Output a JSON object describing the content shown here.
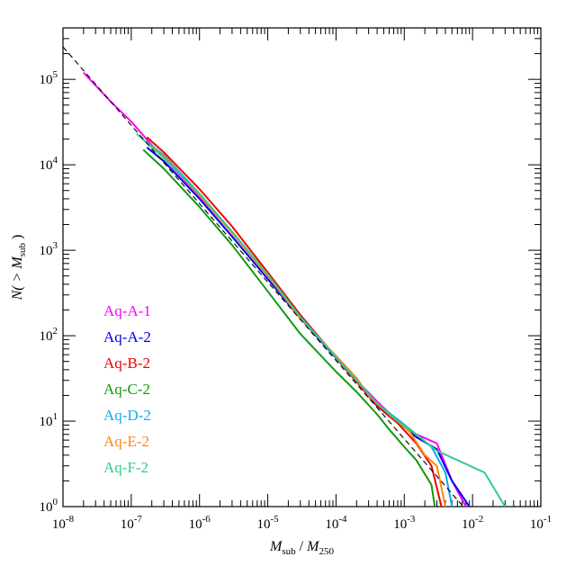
{
  "chart_data": {
    "type": "line",
    "xscale": "log",
    "yscale": "log",
    "xlim": [
      1e-08,
      0.1
    ],
    "ylim": [
      1,
      400000
    ],
    "xlabel": {
      "main": "M",
      "sub": "sub",
      "sep": " / ",
      "main2": "M",
      "sub2": "250"
    },
    "ylabel": {
      "prefix": "N( > ",
      "main": "M",
      "sub": "sub",
      "suffix": " )"
    },
    "x_ticks": [
      {
        "value": 1e-08,
        "base": "10",
        "exp": "-8"
      },
      {
        "value": 1e-07,
        "base": "10",
        "exp": "-7"
      },
      {
        "value": 1e-06,
        "base": "10",
        "exp": "-6"
      },
      {
        "value": 1e-05,
        "base": "10",
        "exp": "-5"
      },
      {
        "value": 0.0001,
        "base": "10",
        "exp": "-4"
      },
      {
        "value": 0.001,
        "base": "10",
        "exp": "-3"
      },
      {
        "value": 0.01,
        "base": "10",
        "exp": "-2"
      },
      {
        "value": 0.1,
        "base": "10",
        "exp": "-1"
      }
    ],
    "y_ticks": [
      {
        "value": 1,
        "base": "10",
        "exp": "0"
      },
      {
        "value": 10,
        "base": "10",
        "exp": "1"
      },
      {
        "value": 100,
        "base": "10",
        "exp": "2"
      },
      {
        "value": 1000,
        "base": "10",
        "exp": "3"
      },
      {
        "value": 10000,
        "base": "10",
        "exp": "4"
      },
      {
        "value": 100000,
        "base": "10",
        "exp": "5"
      }
    ],
    "grid": false,
    "legend_position": "lower-left",
    "fit_line": {
      "style": "dashed",
      "color": "#000000",
      "x": [
        1e-08,
        0.01
      ],
      "y": [
        240000,
        0.75
      ]
    },
    "series": [
      {
        "name": "Aq-A-1",
        "color": "#ff00ff",
        "x": [
          2e-08,
          5e-08,
          1e-07,
          2e-07,
          5e-07,
          1e-06,
          3e-06,
          1e-05,
          3e-05,
          0.0001,
          0.0002,
          0.0004,
          0.0008,
          0.0015,
          0.003,
          0.005,
          0.008
        ],
        "y": [
          120000,
          55000,
          32000,
          17000,
          7800,
          4300,
          1600,
          500,
          170,
          57,
          30,
          17,
          10,
          7,
          5.5,
          2,
          1
        ]
      },
      {
        "name": "Aq-A-2",
        "color": "#0000ee",
        "x": [
          1.7e-07,
          3e-07,
          1e-06,
          3e-06,
          1e-05,
          3e-05,
          0.0001,
          0.0002,
          0.0004,
          0.0008,
          0.0015,
          0.003,
          0.005,
          0.009
        ],
        "y": [
          16000,
          11000,
          4000,
          1450,
          460,
          160,
          55,
          29,
          15,
          10,
          6.5,
          4.7,
          2,
          1
        ]
      },
      {
        "name": "Aq-B-2",
        "color": "#ee0000",
        "x": [
          1.7e-07,
          3e-07,
          1e-06,
          3e-06,
          1e-05,
          3e-05,
          0.0001,
          0.0002,
          0.0004,
          0.0008,
          0.0015,
          0.0025,
          0.0035
        ],
        "y": [
          21000,
          14000,
          5200,
          1900,
          550,
          175,
          56,
          29,
          15,
          9.5,
          5.5,
          3,
          1
        ]
      },
      {
        "name": "Aq-C-2",
        "color": "#119911",
        "x": [
          1.5e-07,
          3e-07,
          1e-06,
          3e-06,
          1e-05,
          3e-05,
          0.0001,
          0.0002,
          0.0004,
          0.0006,
          0.001,
          0.0015,
          0.0025,
          0.0028
        ],
        "y": [
          15000,
          9000,
          3200,
          1150,
          330,
          105,
          38,
          22,
          12,
          8,
          5,
          3.5,
          1.8,
          1
        ]
      },
      {
        "name": "Aq-D-2",
        "color": "#11aaee",
        "x": [
          1.6e-07,
          3e-07,
          1e-06,
          3e-06,
          1e-05,
          3e-05,
          0.0001,
          0.0002,
          0.0004,
          0.0008,
          0.0015,
          0.0025,
          0.004,
          0.005
        ],
        "y": [
          19000,
          13000,
          4600,
          1650,
          510,
          165,
          57,
          30,
          16,
          10.5,
          7,
          5,
          2.5,
          1
        ]
      },
      {
        "name": "Aq-E-2",
        "color": "#ff8811",
        "x": [
          1.7e-07,
          3e-07,
          1e-06,
          3e-06,
          1e-05,
          3e-05,
          0.0001,
          0.0002,
          0.0003,
          0.0006,
          0.0012,
          0.002,
          0.003,
          0.004
        ],
        "y": [
          18000,
          12500,
          4400,
          1600,
          500,
          160,
          58,
          32,
          20,
          12,
          7.5,
          4,
          3,
          1
        ]
      },
      {
        "name": "Aq-F-2",
        "color": "#33cc88",
        "x": [
          1.2e-07,
          3e-07,
          1e-06,
          3e-06,
          1e-05,
          3e-05,
          0.0001,
          0.0002,
          0.0004,
          0.0008,
          0.0015,
          0.003,
          0.006,
          0.015,
          0.03
        ],
        "y": [
          23000,
          12000,
          4600,
          1650,
          520,
          165,
          56,
          30,
          16,
          10,
          7,
          4.5,
          3.5,
          2.5,
          1
        ]
      }
    ]
  }
}
